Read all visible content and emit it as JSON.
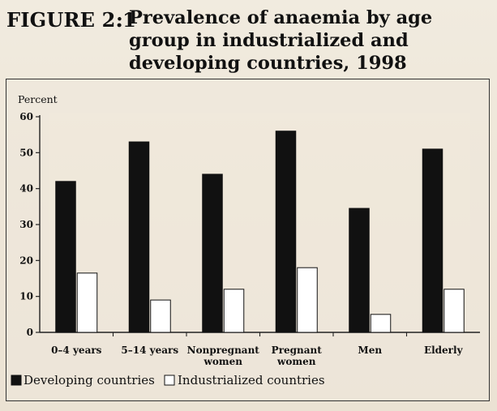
{
  "figure": {
    "label": "FIGURE 2.1",
    "colon": ":",
    "title": "Prevalence of anaemia by age group in industrialized and developing countries, 1998"
  },
  "chart_data": {
    "type": "bar",
    "title": "Prevalence of anaemia by age group in industrialized and developing countries, 1998",
    "ylabel": "Percent",
    "xlabel": "",
    "ylim": [
      0,
      60
    ],
    "yticks": [
      0,
      10,
      20,
      30,
      40,
      50,
      60
    ],
    "categories": [
      [
        "0–4 years"
      ],
      [
        "5–14 years"
      ],
      [
        "Nonpregnant",
        "women"
      ],
      [
        "Pregnant",
        "women"
      ],
      [
        "Men"
      ],
      [
        "Elderly"
      ]
    ],
    "series": [
      {
        "name": "Developing countries",
        "color": "#111111",
        "values": [
          42,
          53,
          44,
          56,
          34.5,
          51
        ]
      },
      {
        "name": "Industrialized countries",
        "color": "#ffffff",
        "values": [
          16.5,
          9,
          12,
          18,
          5,
          12
        ]
      }
    ],
    "legend": [
      "Developing countries",
      "Industrialized countries"
    ]
  },
  "colors": {
    "background": "#efe7da",
    "ink": "#111111",
    "bar_dark": "#111111",
    "bar_light": "#ffffff"
  }
}
